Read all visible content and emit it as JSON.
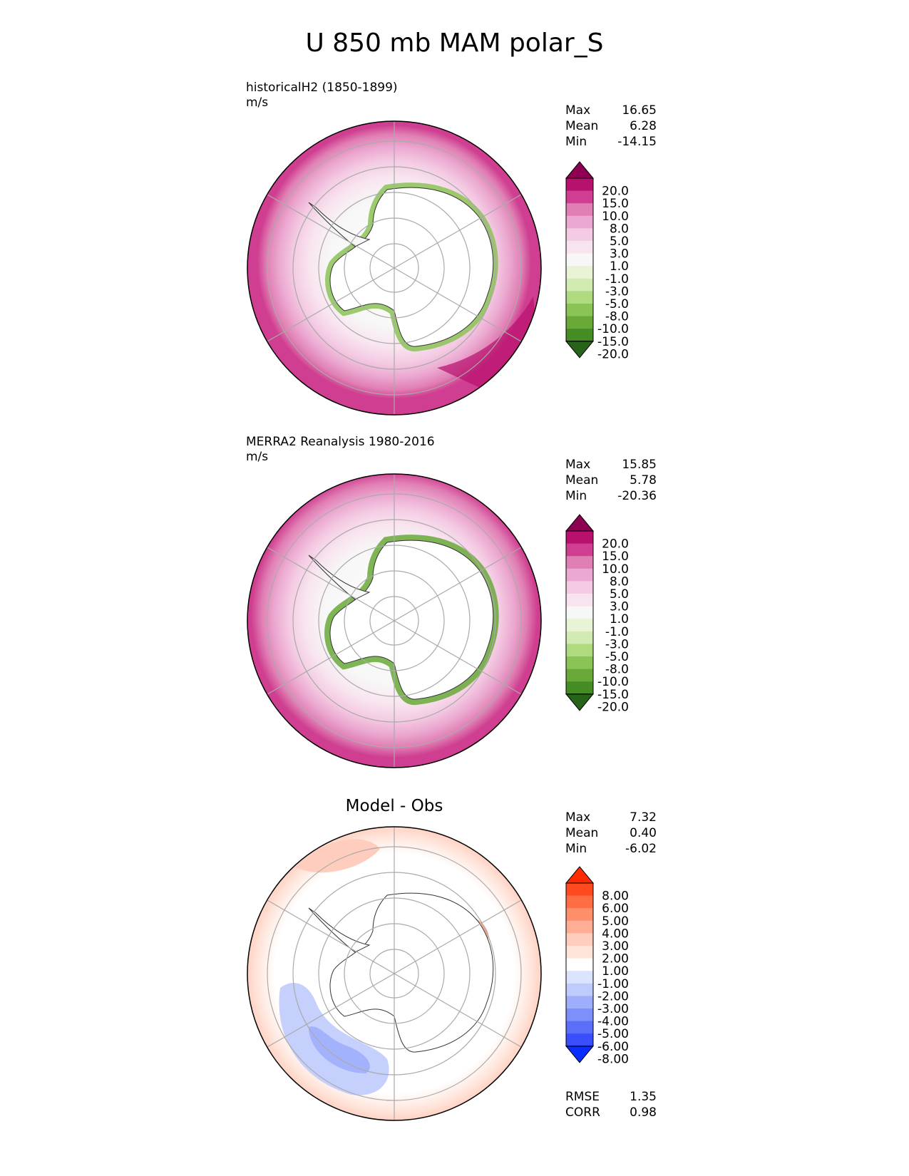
{
  "title": "U 850 mb MAM polar_S",
  "chart_data": [
    {
      "type": "heatmap",
      "projection": "south-polar-stereographic",
      "label": "historicalH2 (1850-1899)",
      "units": "m/s",
      "stats": {
        "max": "16.65",
        "mean": "6.28",
        "min": "-14.15"
      },
      "colorbar": {
        "levels": [
          "20.0",
          "15.0",
          "10.0",
          "8.0",
          "5.0",
          "3.0",
          "1.0",
          "-1.0",
          "-3.0",
          "-5.0",
          "-8.0",
          "-10.0",
          "-15.0",
          "-20.0"
        ],
        "colors": [
          "#8e0152",
          "#b8106d",
          "#cf3e90",
          "#e07fb4",
          "#eba8d0",
          "#f4cbe3",
          "#f8e4ef",
          "#f7f7f7",
          "#e9f4d6",
          "#d1ebb2",
          "#b0da80",
          "#8cc356",
          "#69a938",
          "#468c25",
          "#276419"
        ]
      },
      "field_summary": "Zonal wind strong (15-20 m/s) near outer circle, weakening toward Antarctica, negative (easterly) along the coast"
    },
    {
      "type": "heatmap",
      "projection": "south-polar-stereographic",
      "label": "MERRA2 Reanalysis 1980-2016",
      "units": "m/s",
      "stats": {
        "max": "15.85",
        "mean": "5.78",
        "min": "-20.36"
      },
      "colorbar": {
        "levels": [
          "20.0",
          "15.0",
          "10.0",
          "8.0",
          "5.0",
          "3.0",
          "1.0",
          "-1.0",
          "-3.0",
          "-5.0",
          "-8.0",
          "-10.0",
          "-15.0",
          "-20.0"
        ],
        "colors": [
          "#8e0152",
          "#b8106d",
          "#cf3e90",
          "#e07fb4",
          "#eba8d0",
          "#f4cbe3",
          "#f8e4ef",
          "#f7f7f7",
          "#e9f4d6",
          "#d1ebb2",
          "#b0da80",
          "#8cc356",
          "#69a938",
          "#468c25",
          "#276419"
        ]
      },
      "field_summary": "Similar westerly band, slightly weaker, with stronger coastal easterlies"
    },
    {
      "type": "heatmap",
      "projection": "south-polar-stereographic",
      "label": "Model - Obs",
      "units": "m/s",
      "stats": {
        "max": "7.32",
        "mean": "0.40",
        "min": "-6.02"
      },
      "metrics": {
        "rmse": "1.35",
        "corr": "0.98"
      },
      "colorbar": {
        "levels": [
          "8.00",
          "6.00",
          "5.00",
          "4.00",
          "3.00",
          "2.00",
          "1.00",
          "-1.00",
          "-2.00",
          "-3.00",
          "-4.00",
          "-5.00",
          "-6.00",
          "-8.00"
        ],
        "colors": [
          "#ff2a00",
          "#ff4a1f",
          "#ff6d45",
          "#ff8e6b",
          "#ffae95",
          "#ffcdbd",
          "#ffe4da",
          "#ffffff",
          "#dce3ff",
          "#bfcbfd",
          "#9eaefc",
          "#7d8ffb",
          "#5b6efa",
          "#3a4efb",
          "#0a2dff"
        ]
      },
      "field_summary": "Mostly small differences; positive bias in outer ring, negative bias in Pacific sector"
    }
  ],
  "labels": {
    "max": "Max",
    "mean": "Mean",
    "min": "Min",
    "rmse": "RMSE",
    "corr": "CORR"
  }
}
